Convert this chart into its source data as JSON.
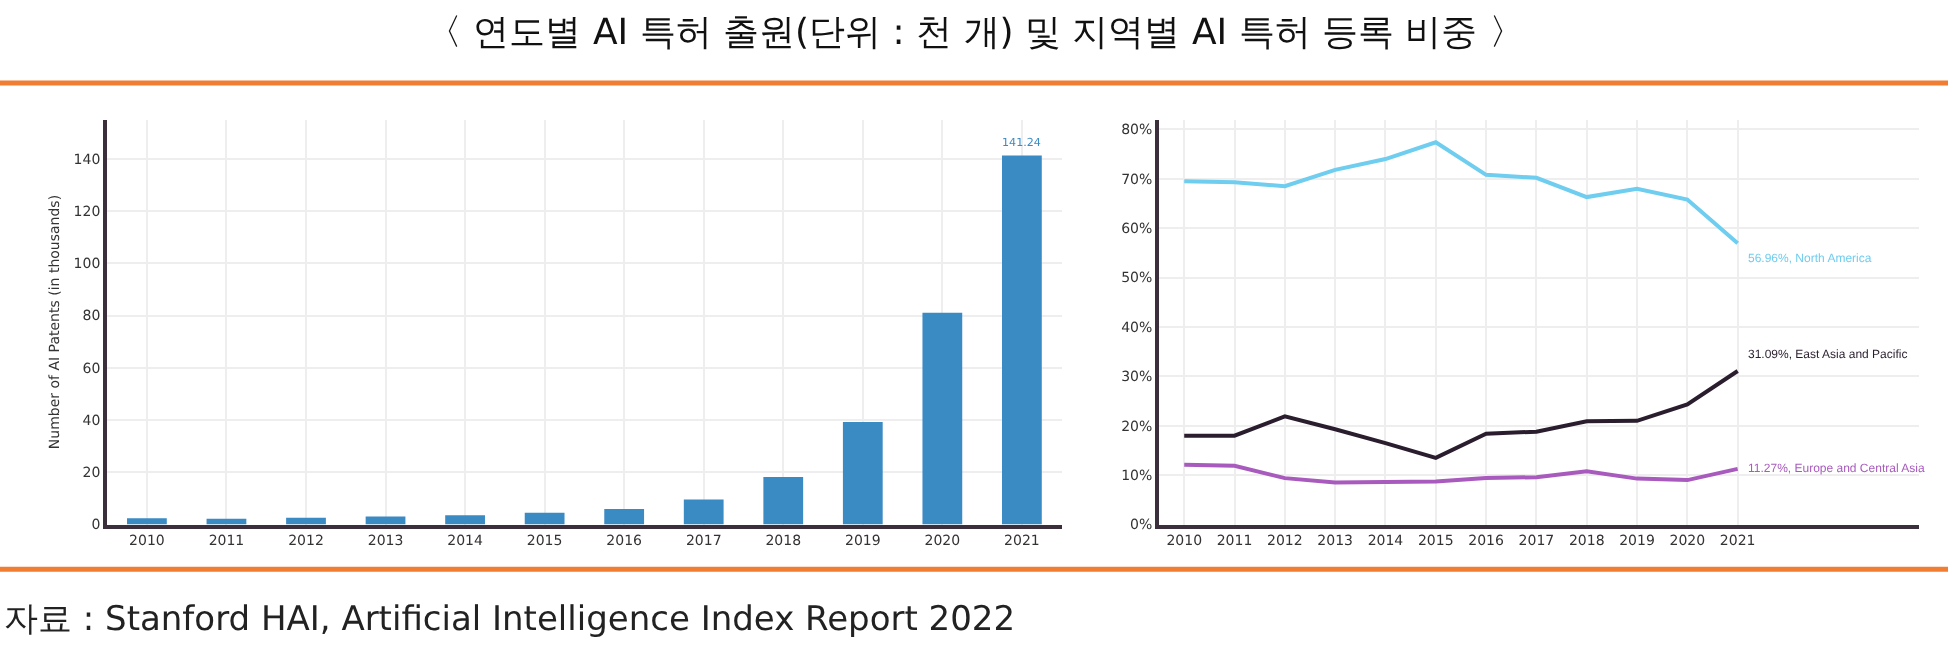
{
  "chart_data": [
    {
      "type": "bar",
      "title": "〈 연도별 AI 특허 출원(단위 : 천 개) 및 지역별 AI 특허 등록 비중 〉",
      "ylabel": "Number of AI Patents (in thousands)",
      "categories": [
        "2010",
        "2011",
        "2012",
        "2013",
        "2014",
        "2015",
        "2016",
        "2017",
        "2018",
        "2019",
        "2020",
        "2021"
      ],
      "values": [
        2.4,
        2.2,
        2.6,
        3.1,
        3.6,
        4.5,
        6.0,
        9.6,
        18.2,
        39.2,
        81.1,
        141.24
      ],
      "value_labels": [
        null,
        null,
        null,
        null,
        null,
        null,
        null,
        null,
        null,
        null,
        null,
        "141.24"
      ],
      "color": "#3a8ac4",
      "ylim": [
        0,
        155
      ],
      "yticks": [
        0,
        20,
        40,
        60,
        80,
        100,
        120,
        140
      ],
      "grid": true,
      "annotations": [
        "자료 : Stanford HAI, Artificial Intelligence Index Report 2022"
      ]
    },
    {
      "type": "line",
      "x": [
        2010,
        2011,
        2012,
        2013,
        2014,
        2015,
        2016,
        2017,
        2018,
        2019,
        2020,
        2021
      ],
      "series": [
        {
          "color": "#6fcdef",
          "values": [
            69.5,
            69.3,
            68.5,
            71.8,
            74.0,
            77.4,
            70.8,
            70.2,
            66.3,
            68.0,
            65.8,
            56.96
          ]
        },
        {
          "color": "#2a1e2e",
          "values": [
            18.0,
            18.0,
            21.9,
            19.3,
            16.5,
            13.5,
            18.4,
            18.8,
            20.9,
            21.0,
            24.3,
            31.09
          ]
        },
        {
          "color": "#a85bbd",
          "values": [
            12.1,
            11.9,
            9.4,
            8.5,
            8.6,
            8.7,
            9.4,
            9.6,
            10.8,
            9.3,
            9.0,
            11.27
          ]
        }
      ],
      "xlim": [
        2009.5,
        2024.6
      ],
      "xticks": [
        2010,
        2011,
        2012,
        2013,
        2014,
        2015,
        2016,
        2017,
        2018,
        2019,
        2020,
        2021
      ],
      "ylim": [
        0,
        82
      ],
      "yticks": [
        {
          "value": 0,
          "label": "0%"
        },
        {
          "value": 10,
          "label": "10%"
        },
        {
          "value": 20,
          "label": "20%"
        },
        {
          "value": 30,
          "label": "30%"
        },
        {
          "value": 40,
          "label": "40%"
        },
        {
          "value": 50,
          "label": "50%"
        },
        {
          "value": 60,
          "label": "60%"
        },
        {
          "value": 70,
          "label": "70%"
        },
        {
          "value": 80,
          "label": "80%"
        }
      ],
      "grid": true,
      "marker": "none",
      "line_style": "solid",
      "annotations": [
        "56.96%, North America",
        "31.09%, East Asia and Pacific",
        "11.27%, Europe and Central Asia"
      ]
    }
  ]
}
